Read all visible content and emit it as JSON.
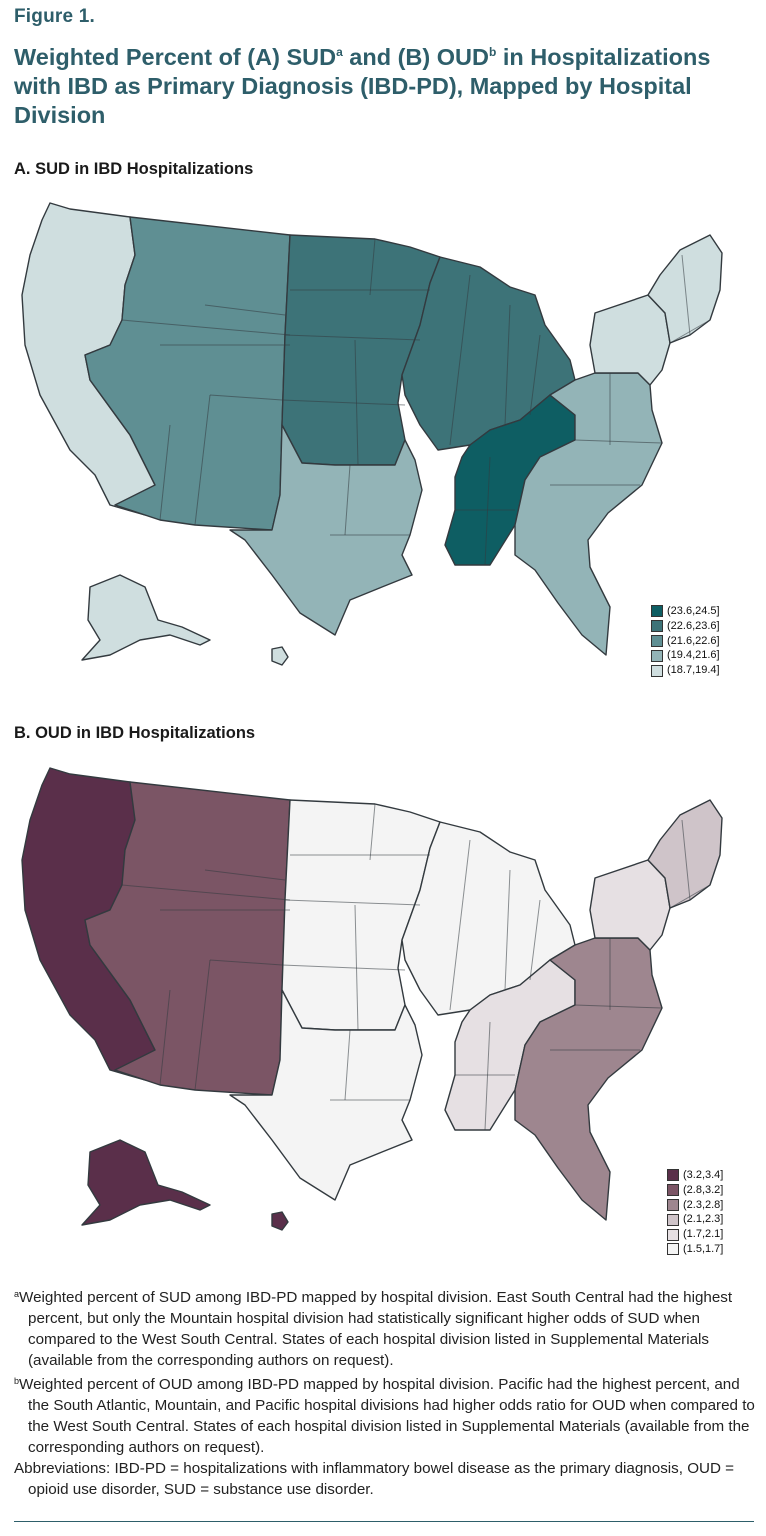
{
  "figure": {
    "label": "Figure 1.",
    "title_part1": "Weighted Percent of (A) SUD",
    "title_sup1": "a",
    "title_part2": " and (B) OUD",
    "title_sup2": "b",
    "title_part3": " in Hospitalizations with IBD as Primary Diagnosis (IBD-PD), Mapped by Hospital Division"
  },
  "map_data": [
    {
      "panel_title": "A. SUD in IBD Hospitalizations",
      "legend": [
        {
          "label": "(23.6,24.5]",
          "color": "#0e5e63"
        },
        {
          "label": "(22.6,23.6]",
          "color": "#3d7378"
        },
        {
          "label": "(21.6,22.6]",
          "color": "#5f8f93"
        },
        {
          "label": "(19.4,21.6]",
          "color": "#93b4b7"
        },
        {
          "label": "(18.7,19.4]",
          "color": "#cfdedf"
        }
      ],
      "divisions": {
        "Pacific": "#cfdedf",
        "Mountain": "#5f8f93",
        "West North Central": "#3d7378",
        "East North Central": "#3d7378",
        "East South Central": "#0e5e63",
        "West South Central": "#93b4b7",
        "South Atlantic": "#93b4b7",
        "Middle Atlantic": "#cfdedf",
        "New England": "#cfdedf"
      }
    },
    {
      "panel_title": "B. OUD in IBD Hospitalizations",
      "legend": [
        {
          "label": "(3.2,3.4]",
          "color": "#5a2f4a"
        },
        {
          "label": "(2.8,3.2]",
          "color": "#7b5565"
        },
        {
          "label": "(2.3,2.8]",
          "color": "#9e868f"
        },
        {
          "label": "(2.1,2.3]",
          "color": "#cfc4c9"
        },
        {
          "label": "(1.7,2.1]",
          "color": "#e6e0e3"
        },
        {
          "label": "(1.5,1.7]",
          "color": "#f4f4f4"
        }
      ],
      "divisions": {
        "Pacific": "#5a2f4a",
        "Mountain": "#7b5565",
        "West North Central": "#f4f4f4",
        "East North Central": "#f4f4f4",
        "East South Central": "#e6e0e3",
        "West South Central": "#f4f4f4",
        "South Atlantic": "#9e868f",
        "Middle Atlantic": "#e6e0e3",
        "New England": "#cfc4c9"
      }
    }
  ],
  "notes": {
    "a_sup": "a",
    "a_text": "Weighted percent of SUD among IBD-PD mapped by hospital division. East South Central had the highest percent, but only the Mountain hospital division had statistically significant higher odds of SUD when compared to the West South Central. States of each hospital division listed in Supplemental Materials (available from the corresponding authors on request).",
    "b_sup": "b",
    "b_text": "Weighted percent of OUD among IBD-PD mapped by hospital division. Pacific had the highest percent, and the South Atlantic, Mountain, and Pacific hospital divisions had higher odds ratio for OUD when compared to the West South Central. States of each hospital division listed in Supplemental Materials (available from the corresponding authors on request).",
    "abbreviations": "Abbreviations: IBD-PD = hospitalizations with inflammatory bowel disease as the primary diagnosis, OUD = opioid use disorder, SUD = substance use disorder."
  }
}
